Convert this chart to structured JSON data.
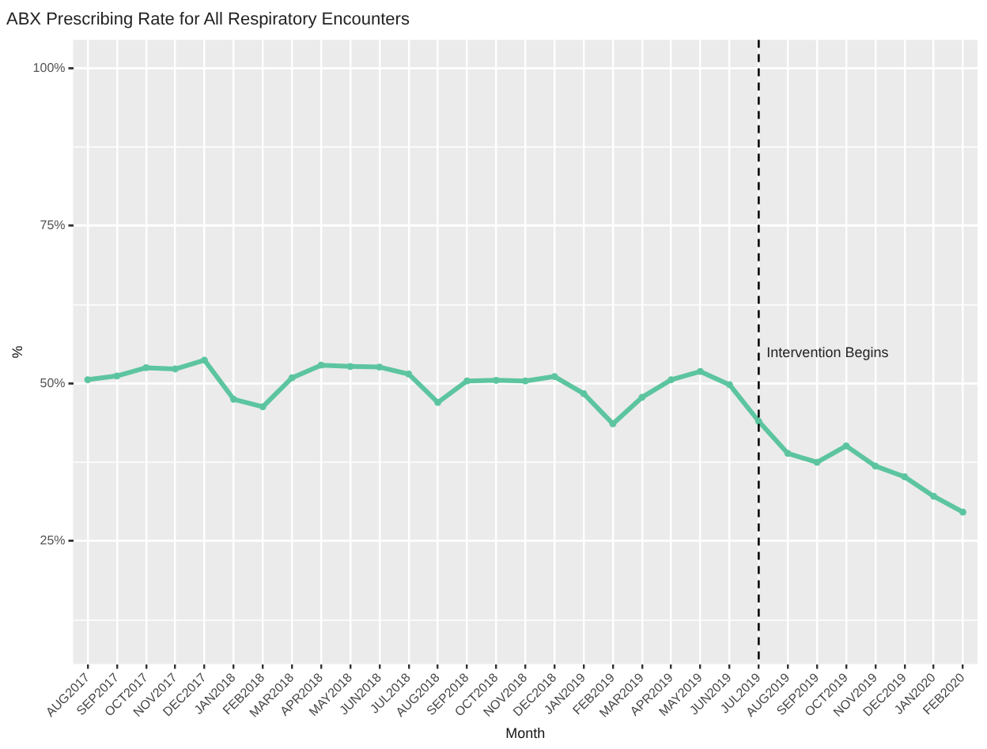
{
  "chart_data": {
    "type": "line",
    "title": "ABX Prescribing Rate for All Respiratory Encounters",
    "xlabel": "Month",
    "ylabel": "%",
    "categories": [
      "AUG2017",
      "SEP2017",
      "OCT2017",
      "NOV2017",
      "DEC2017",
      "JAN2018",
      "FEB2018",
      "MAR2018",
      "APR2018",
      "MAY2018",
      "JUN2018",
      "JUL2018",
      "AUG2018",
      "SEP2018",
      "OCT2018",
      "NOV2018",
      "DEC2018",
      "JAN2019",
      "FEB2019",
      "MAR2019",
      "APR2019",
      "MAY2019",
      "JUN2019",
      "JUL2019",
      "AUG2019",
      "SEP2019",
      "OCT2019",
      "NOV2019",
      "DEC2019",
      "JAN2020",
      "FEB2020"
    ],
    "series": [
      {
        "color": "#5cc5a0",
        "values": [
          50.6,
          51.2,
          52.5,
          52.3,
          53.7,
          47.5,
          46.3,
          50.9,
          52.9,
          52.7,
          52.6,
          51.5,
          47.0,
          50.4,
          50.5,
          50.4,
          51.1,
          48.4,
          43.6,
          47.8,
          50.6,
          51.9,
          49.8,
          44.0,
          38.9,
          37.5,
          40.1,
          36.9,
          35.2,
          32.1,
          29.6
        ]
      }
    ],
    "ylim": [
      5.5,
      104.5
    ],
    "yticks": [
      {
        "value": 12.5,
        "label": null
      },
      {
        "value": 25,
        "label": "25%"
      },
      {
        "value": 37.5,
        "label": null
      },
      {
        "value": 50,
        "label": "50%"
      },
      {
        "value": 62.5,
        "label": null
      },
      {
        "value": 75,
        "label": "75%"
      },
      {
        "value": 87.5,
        "label": null
      },
      {
        "value": 100,
        "label": "100%"
      }
    ],
    "ref_lines": [
      {
        "axis": "x",
        "value": "JUL2019",
        "color": "#000000",
        "line_style": "dashed"
      }
    ],
    "annotations": [
      {
        "text": "Intervention Begins",
        "x": "JUL2019",
        "y": 54.8
      }
    ],
    "grid": true,
    "legend": false,
    "marker": "circle",
    "line_style": "solid"
  }
}
